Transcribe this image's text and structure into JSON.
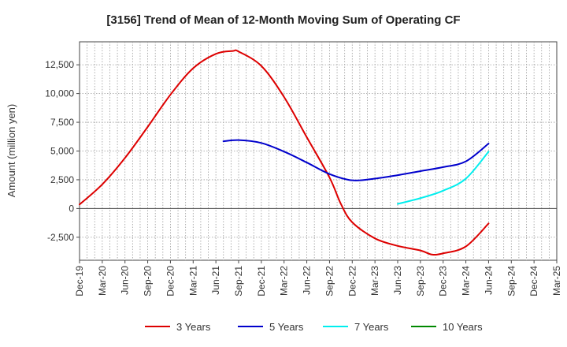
{
  "chart_data": {
    "type": "line",
    "title": "[3156]  Trend of Mean of 12-Month Moving Sum of Operating CF",
    "xlabel": "",
    "ylabel": "Amount (million yen)",
    "ylim": [
      -4500,
      14500
    ],
    "yticks": [
      12500,
      10000,
      7500,
      5000,
      2500,
      0,
      -2500
    ],
    "ytick_labels": [
      "12,500",
      "10,000",
      "7,500",
      "5,000",
      "2,500",
      "0",
      "-2,500"
    ],
    "x_categories": [
      "Dec-19",
      "Mar-20",
      "Jun-20",
      "Sep-20",
      "Dec-20",
      "Mar-21",
      "Jun-21",
      "Sep-21",
      "Dec-21",
      "Mar-22",
      "Jun-22",
      "Sep-22",
      "Dec-22",
      "Mar-23",
      "Jun-23",
      "Sep-23",
      "Dec-23",
      "Mar-24",
      "Jun-24",
      "Sep-24",
      "Dec-24",
      "Mar-25"
    ],
    "grid": true,
    "legend_position": "bottom",
    "series": [
      {
        "name": "3 Years",
        "color": "#dd0000",
        "points": [
          [
            0,
            350
          ],
          [
            1,
            2100
          ],
          [
            2,
            4400
          ],
          [
            3,
            7100
          ],
          [
            4,
            9900
          ],
          [
            5,
            12200
          ],
          [
            6,
            13450
          ],
          [
            6.75,
            13700
          ],
          [
            7,
            13650
          ],
          [
            8,
            12400
          ],
          [
            9,
            9700
          ],
          [
            10,
            6200
          ],
          [
            11,
            2700
          ],
          [
            11.5,
            400
          ],
          [
            12,
            -1200
          ],
          [
            13,
            -2600
          ],
          [
            14,
            -3250
          ],
          [
            15,
            -3650
          ],
          [
            15.5,
            -4000
          ],
          [
            16,
            -3900
          ],
          [
            17,
            -3300
          ],
          [
            18,
            -1300
          ]
        ]
      },
      {
        "name": "5 Years",
        "color": "#0000cc",
        "points": [
          [
            6.33,
            5850
          ],
          [
            7,
            5950
          ],
          [
            8,
            5700
          ],
          [
            9,
            4950
          ],
          [
            10,
            4000
          ],
          [
            11,
            3000
          ],
          [
            12,
            2450
          ],
          [
            13,
            2600
          ],
          [
            14,
            2900
          ],
          [
            15,
            3250
          ],
          [
            16,
            3600
          ],
          [
            17,
            4100
          ],
          [
            18,
            5650
          ]
        ]
      },
      {
        "name": "7 Years",
        "color": "#00eeee",
        "points": [
          [
            14,
            400
          ],
          [
            15,
            900
          ],
          [
            16,
            1550
          ],
          [
            17,
            2600
          ],
          [
            18,
            4950
          ]
        ]
      },
      {
        "name": "10 Years",
        "color": "#008800",
        "points": []
      }
    ]
  }
}
